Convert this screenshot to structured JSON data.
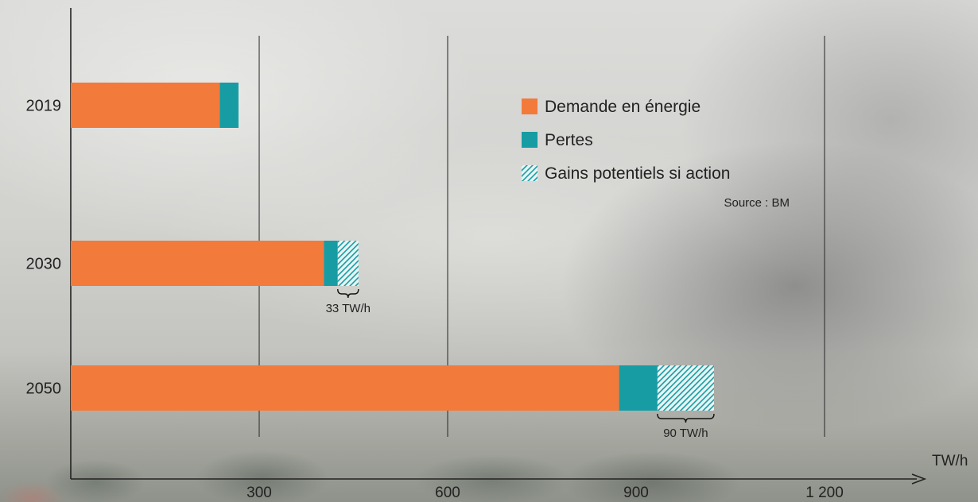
{
  "chart_data": {
    "type": "bar",
    "orientation": "horizontal",
    "stacked": true,
    "categories": [
      "2019",
      "2030",
      "2050"
    ],
    "series": [
      {
        "name": "Demande en énergie",
        "values": [
          237,
          403,
          873
        ],
        "color": "#f27a3a",
        "pattern": "solid"
      },
      {
        "name": "Pertes",
        "values": [
          30,
          22,
          61
        ],
        "color": "#179ca3",
        "pattern": "solid"
      },
      {
        "name": "Gains potentiels si action",
        "values": [
          0,
          33,
          90
        ],
        "color": "#179ca3",
        "pattern": "hatched"
      }
    ],
    "annotations": [
      {
        "category": "2030",
        "text": "33 TW/h"
      },
      {
        "category": "2050",
        "text": "90 TW/h"
      }
    ],
    "x_ticks": [
      300,
      600,
      900,
      1200
    ],
    "x_tick_labels": [
      "300",
      "600",
      "900",
      "1 200"
    ],
    "xlim": [
      0,
      1310
    ],
    "x_unit": "TW/h",
    "gridlines": [
      300,
      600,
      1200
    ],
    "source": "Source : BM",
    "legend_position": "top-right",
    "xlabel": "",
    "ylabel": "",
    "title": ""
  }
}
